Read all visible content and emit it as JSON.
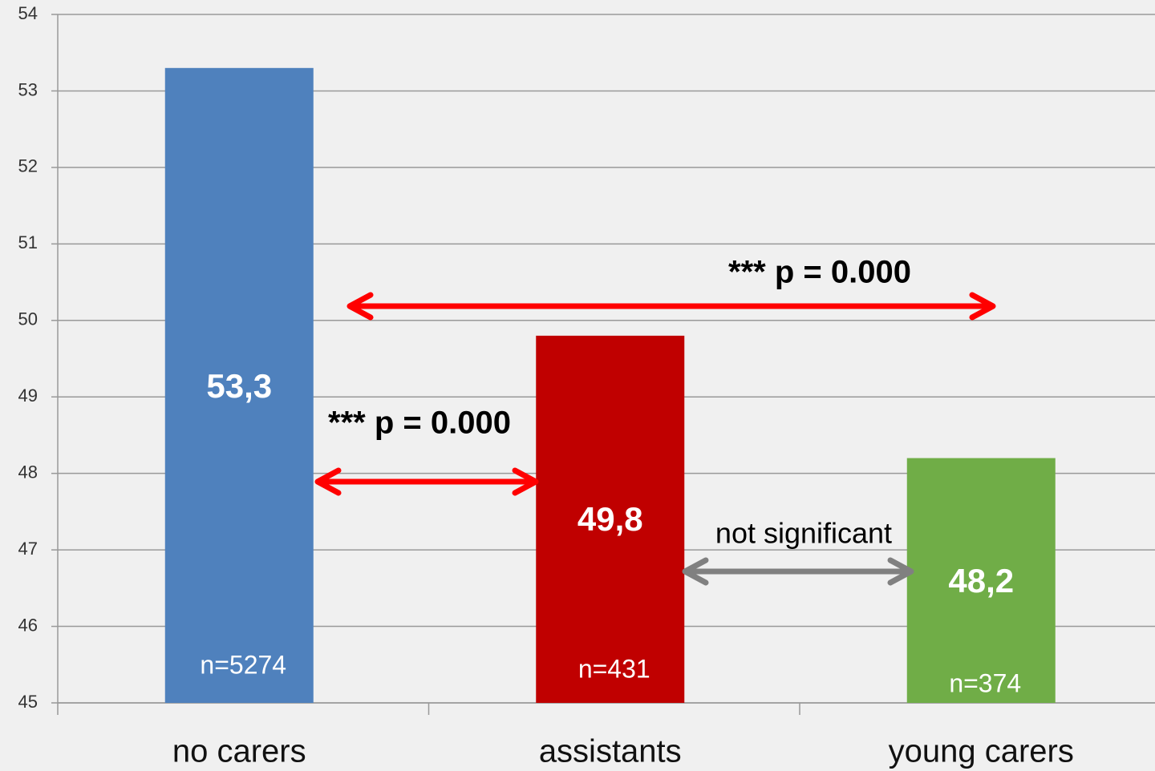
{
  "chart_data": {
    "type": "bar",
    "categories": [
      "no carers",
      "assistants",
      "young carers"
    ],
    "values": [
      53.3,
      49.8,
      48.2
    ],
    "value_labels": [
      "53,3",
      "49,8",
      "48,2"
    ],
    "n_labels": [
      "n=5274",
      "n=431",
      "n=374"
    ],
    "colors": [
      "#4f81bd",
      "#c00000",
      "#70ad47"
    ],
    "ylim": [
      45,
      54
    ],
    "yticks": [
      45,
      46,
      47,
      48,
      49,
      50,
      51,
      52,
      53,
      54
    ],
    "grid": true,
    "comparisons": [
      {
        "label": "*** p = 0.000",
        "color": "#ff0000"
      },
      {
        "label": "*** p = 0.000",
        "color": "#ff0000"
      },
      {
        "label": "not significant",
        "color": "#808080"
      }
    ]
  }
}
